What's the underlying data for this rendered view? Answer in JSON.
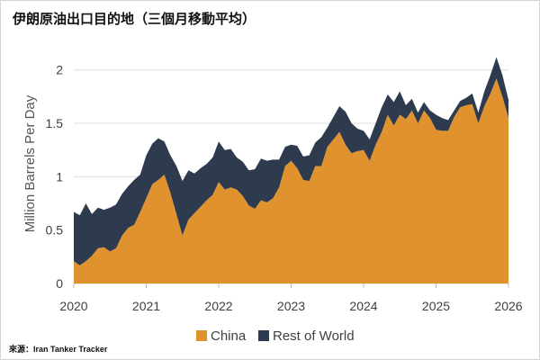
{
  "source": "來源：Iran Tanker Tracker",
  "chart_data": {
    "type": "area",
    "stacked": true,
    "title": "伊朗原油出口目的地（三個月移動平均）",
    "ylabel": "Million Barrels Per Day",
    "ylim": [
      0,
      2.2
    ],
    "yticks": [
      0,
      0.5,
      1,
      1.5,
      2
    ],
    "xlim": [
      "2020-01",
      "2026-01"
    ],
    "xticks": [
      "2020",
      "2021",
      "2022",
      "2023",
      "2024",
      "2025",
      "2026"
    ],
    "grid": "horizontal",
    "legend": "bottom-center",
    "x": [
      "2020-01",
      "2020-02",
      "2020-03",
      "2020-04",
      "2020-05",
      "2020-06",
      "2020-07",
      "2020-08",
      "2020-09",
      "2020-10",
      "2020-11",
      "2020-12",
      "2021-01",
      "2021-02",
      "2021-03",
      "2021-04",
      "2021-05",
      "2021-06",
      "2021-07",
      "2021-08",
      "2021-09",
      "2021-10",
      "2021-11",
      "2021-12",
      "2022-01",
      "2022-02",
      "2022-03",
      "2022-04",
      "2022-05",
      "2022-06",
      "2022-07",
      "2022-08",
      "2022-09",
      "2022-10",
      "2022-11",
      "2022-12",
      "2023-01",
      "2023-02",
      "2023-03",
      "2023-04",
      "2023-05",
      "2023-06",
      "2023-07",
      "2023-08",
      "2023-09",
      "2023-10",
      "2023-11",
      "2023-12",
      "2024-01",
      "2024-02",
      "2024-03",
      "2024-04",
      "2024-05",
      "2024-06",
      "2024-07",
      "2024-08",
      "2024-09",
      "2024-10",
      "2024-11",
      "2024-12",
      "2025-01",
      "2025-02",
      "2025-03",
      "2025-04",
      "2025-05",
      "2025-06",
      "2025-07",
      "2025-08",
      "2025-09",
      "2025-10",
      "2025-11",
      "2025-12",
      "2026-01"
    ],
    "series": [
      {
        "name": "China",
        "color": "#E0922F",
        "values": [
          0.21,
          0.17,
          0.21,
          0.26,
          0.33,
          0.34,
          0.3,
          0.33,
          0.45,
          0.52,
          0.55,
          0.67,
          0.8,
          0.93,
          0.97,
          1.02,
          0.85,
          0.65,
          0.45,
          0.6,
          0.66,
          0.72,
          0.78,
          0.83,
          0.95,
          0.88,
          0.9,
          0.88,
          0.82,
          0.73,
          0.7,
          0.78,
          0.76,
          0.8,
          0.9,
          1.1,
          1.15,
          1.08,
          0.97,
          0.96,
          1.1,
          1.1,
          1.28,
          1.35,
          1.42,
          1.3,
          1.22,
          1.24,
          1.25,
          1.15,
          1.3,
          1.42,
          1.58,
          1.48,
          1.58,
          1.54,
          1.62,
          1.5,
          1.62,
          1.55,
          1.44,
          1.43,
          1.43,
          1.56,
          1.65,
          1.67,
          1.68,
          1.5,
          1.66,
          1.78,
          1.92,
          1.75,
          1.55
        ]
      },
      {
        "name": "Rest of World",
        "color": "#2E3B4E",
        "values": [
          0.46,
          0.47,
          0.54,
          0.39,
          0.38,
          0.35,
          0.41,
          0.41,
          0.39,
          0.39,
          0.42,
          0.35,
          0.4,
          0.38,
          0.39,
          0.31,
          0.35,
          0.45,
          0.51,
          0.46,
          0.37,
          0.36,
          0.34,
          0.35,
          0.38,
          0.37,
          0.36,
          0.3,
          0.32,
          0.33,
          0.37,
          0.39,
          0.39,
          0.36,
          0.26,
          0.18,
          0.15,
          0.21,
          0.22,
          0.24,
          0.22,
          0.27,
          0.18,
          0.21,
          0.24,
          0.31,
          0.28,
          0.21,
          0.18,
          0.2,
          0.2,
          0.23,
          0.19,
          0.22,
          0.22,
          0.13,
          0.11,
          0.1,
          0.08,
          0.07,
          0.14,
          0.12,
          0.1,
          0.06,
          0.06,
          0.07,
          0.1,
          0.1,
          0.14,
          0.17,
          0.2,
          0.2,
          0.17
        ]
      }
    ]
  }
}
